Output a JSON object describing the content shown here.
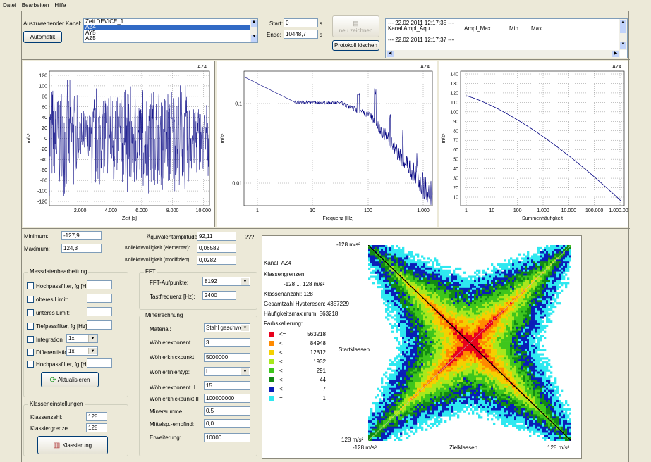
{
  "menu": [
    "Datei",
    "Bearbeiten",
    "Hilfe"
  ],
  "top": {
    "channel_label": "Auszuwertender Kanal:",
    "channels": [
      "Zeit DEVICE_1",
      "AZ4",
      "AY5",
      "AZ5"
    ],
    "automatik_label": "Automatik",
    "start_label": "Start:",
    "start_value": "0",
    "ende_label": "Ende:",
    "ende_value": "10448,7",
    "unit_s": "s",
    "neu_zeichnen_label": "neu zeichnen",
    "protokoll_label": "Protokoll löschen",
    "log_lines": [
      "--- 22.02.2011 12:17:35 ---",
      "Kanal     Ampl_Äqu",
      "Ampl_Max",
      "Min",
      "Max",
      "--- 22.02.2011 12:17:37 ---"
    ]
  },
  "charts": {
    "time": {
      "title": "AZ4",
      "ylabel": "m/s²",
      "xlabel": "Zeit [s]",
      "yticks": [
        "120",
        "100",
        "80",
        "60",
        "40",
        "20",
        "0",
        "-20",
        "-40",
        "-60",
        "-80",
        "-100",
        "-120"
      ],
      "xticks": [
        "2.000",
        "4.000",
        "6.000",
        "8.000",
        "10.000"
      ]
    },
    "fft": {
      "title": "AZ4",
      "ylabel": "m/s²",
      "xlabel": "Frequenz [Hz]",
      "yticks": [
        "0,1",
        "0,01"
      ],
      "xticks": [
        "1",
        "10",
        "100",
        "1.000"
      ]
    },
    "sum": {
      "title": "AZ4",
      "ylabel": "m/s²",
      "xlabel": "Summenhäufigkeit",
      "yticks": [
        "140",
        "130",
        "120",
        "110",
        "100",
        "90",
        "80",
        "70",
        "60",
        "50",
        "40",
        "30",
        "20",
        "10"
      ],
      "xticks": [
        "1",
        "10",
        "100",
        "1.000",
        "10.000",
        "100.000",
        "1.000.000"
      ]
    }
  },
  "stats": {
    "min_label": "Minimum:",
    "min_value": "-127,9",
    "max_label": "Maximum:",
    "max_value": "124,3",
    "aeq_label": "Äquivalentamplitude:",
    "aeq_value": "92,11",
    "aeq_qqq": "???",
    "kol_el_label": "Kollektivvölligkeit (elementar):",
    "kol_el_value": "0,06582",
    "kol_mod_label": "Kollektivvölligkeit (modifiziert):",
    "kol_mod_value": "0,0282"
  },
  "mess": {
    "title": "Messdatenbearbeitung",
    "items": [
      "Hochpassfilter, fg [Hz]:",
      "oberes Limit:",
      "unteres Limit:",
      "Tiefpassfilter, fg [Hz]:",
      "Integration",
      "Differentiation",
      "Hochpassfilter, fg [Hz]:"
    ],
    "integration_value": "1x",
    "differentiation_value": "1x",
    "aktualisieren_label": "Aktualisieren"
  },
  "fft": {
    "title": "FFT",
    "punkte_label": "FFT-Aufpunkte:",
    "punkte_value": "8192",
    "tast_label": "Tastfrequenz [Hz]:",
    "tast_value": "2400"
  },
  "miner": {
    "title": "Minerrechnung",
    "material_label": "Material:",
    "material_value": "Stahl geschweißt",
    "woehler_exp_label": "Wöhlerexponent",
    "woehler_exp_value": "3",
    "knick_label": "Wöhlerknickpunkt",
    "knick_value": "5000000",
    "typ_label": "Wöhlerlinientyp:",
    "typ_value": "I",
    "exp2_label": "Wöhlerexponent II",
    "exp2_value": "15",
    "knick2_label": "Wöhlerknickpunkt II",
    "knick2_value": "100000000",
    "summe_label": "Minersumme",
    "summe_value": "0,5",
    "mittel_label": "Mittelsp.-empfind:",
    "mittel_value": "0,0",
    "erw_label": "Erweiterung:",
    "erw_value": "10000"
  },
  "klasse": {
    "title": "Klasseneinstellungen",
    "anzahl_label": "Klassenzahl:",
    "anzahl_value": "128",
    "grenze_label": "Klassiergrenze",
    "grenze_value": "128",
    "button_label": "Klassierung"
  },
  "rainflow": {
    "kanal": "Kanal: AZ4",
    "grenzen_label": "Klassengrenzen:",
    "grenzen_value": "-128 ... 128  m/s²",
    "anzahl": "Klassenanzahl: 128",
    "gesamt": "Gesamtzahl Hysteresen: 4357229",
    "max": "Häufigkeitsmaximum: 563218",
    "farb": "Farbskalierung:",
    "legend": [
      {
        "op": "<=",
        "val": "563218",
        "color": "#e8001c"
      },
      {
        "op": "<",
        "val": "84948",
        "color": "#ff8a00"
      },
      {
        "op": "<",
        "val": "12812",
        "color": "#f4d000"
      },
      {
        "op": "<",
        "val": "1932",
        "color": "#a8e81c"
      },
      {
        "op": "<",
        "val": "291",
        "color": "#3ec61c"
      },
      {
        "op": "<",
        "val": "44",
        "color": "#128a14"
      },
      {
        "op": "<",
        "val": "7",
        "color": "#0a1eb8"
      },
      {
        "op": "=",
        "val": "1",
        "color": "#2ee8f0"
      }
    ],
    "top_label": "-128  m/s²",
    "bottom_label": "128  m/s²",
    "x_left": "-128  m/s²",
    "x_right": "128  m/s²",
    "ylabel": "Startklassen",
    "xlabel": "Zielklassen"
  }
}
